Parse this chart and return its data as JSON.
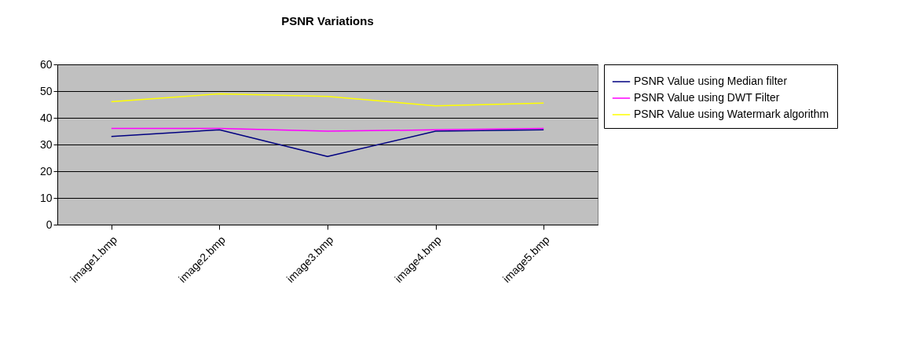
{
  "chart_data": {
    "type": "line",
    "title": "PSNR Variations",
    "categories": [
      "image1.bmp",
      "image2.bmp",
      "image3.bmp",
      "image4.bmp",
      "image5.bmp"
    ],
    "series": [
      {
        "name": "PSNR Value using Median filter",
        "color": "#000080",
        "values": [
          33,
          35.5,
          25.5,
          35,
          35.5
        ]
      },
      {
        "name": "PSNR Value using DWT Filter",
        "color": "#ff00ff",
        "values": [
          36,
          36,
          35,
          35.5,
          36
        ]
      },
      {
        "name": "PSNR Value using Watermark algorithm",
        "color": "#ffff00",
        "values": [
          46,
          49,
          48,
          44.5,
          45.5
        ]
      }
    ],
    "ylim": [
      0,
      60
    ],
    "yticks": [
      0,
      10,
      20,
      30,
      40,
      50,
      60
    ],
    "grid": "y",
    "legend": "right",
    "marker": "none",
    "line_style": "solid"
  }
}
